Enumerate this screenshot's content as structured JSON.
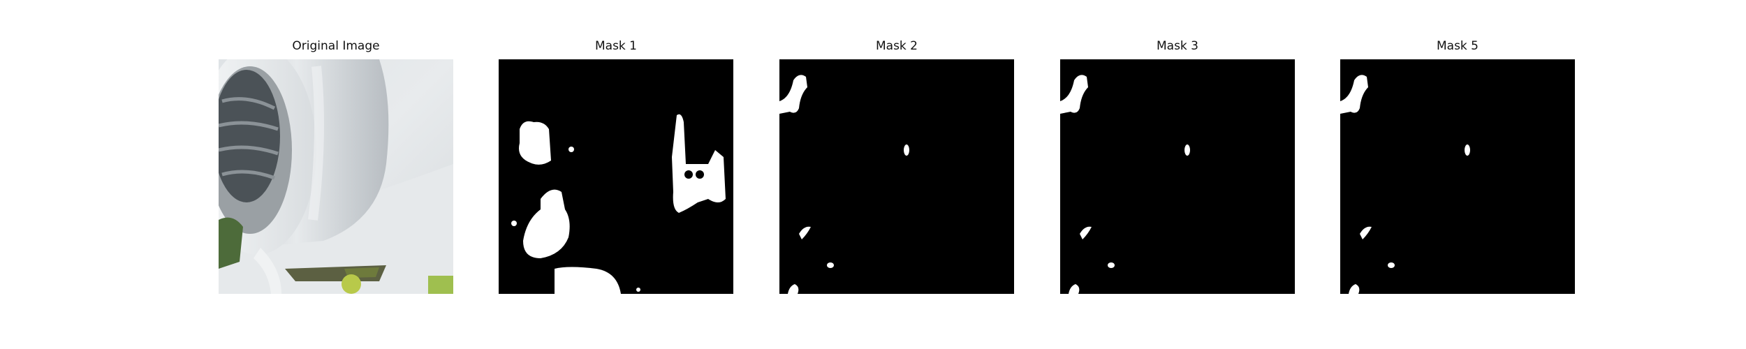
{
  "figure": {
    "panels": [
      {
        "id": "original",
        "title": "Original Image",
        "kind": "photo"
      },
      {
        "id": "mask1",
        "title": "Mask 1",
        "kind": "mask"
      },
      {
        "id": "mask2",
        "title": "Mask 2",
        "kind": "mask"
      },
      {
        "id": "mask3",
        "title": "Mask 3",
        "kind": "mask"
      },
      {
        "id": "mask5",
        "title": "Mask 5",
        "kind": "mask"
      }
    ],
    "colors": {
      "mask_background": "#000000",
      "mask_foreground": "#ffffff",
      "title_text": "#111111",
      "figure_background": "#ffffff"
    }
  }
}
